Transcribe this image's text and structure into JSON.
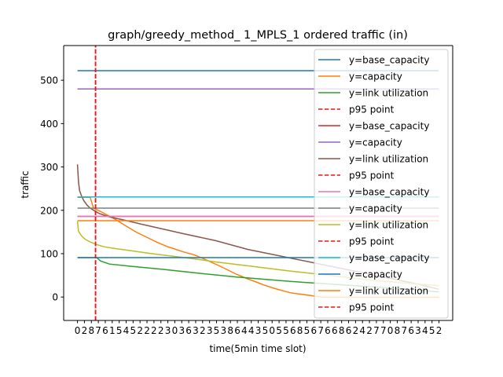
{
  "chart_data": {
    "type": "line",
    "title": "graph/greedy_method_ 1_MPLS_1 ordered traffic (in)",
    "xlabel": "time(5min time slot)",
    "ylabel": "traffic",
    "xlim": [
      -13,
      353
    ],
    "ylim": [
      -54,
      580
    ],
    "grid": false,
    "legend_position": "top-right",
    "yticks": [
      0,
      100,
      200,
      300,
      400,
      500
    ],
    "xtick_labels": [
      "0",
      "2",
      "8",
      "7",
      "6",
      "1",
      "5",
      "4",
      "5",
      "2",
      "2",
      "2",
      "2",
      "3",
      "0",
      "3",
      "6",
      "3",
      "2",
      "3",
      "5",
      "3",
      "8",
      "6",
      "4",
      "4",
      "3",
      "5",
      "0",
      "5",
      "5",
      "6",
      "8",
      "5",
      "6",
      "7",
      "6",
      "6",
      "8",
      "6",
      "2",
      "4",
      "2",
      "7",
      "7",
      "0",
      "8",
      "7",
      "6",
      "3",
      "4",
      "5",
      "2"
    ],
    "series": [
      {
        "name": "y=base_capacity",
        "color": "#1f77b4",
        "dash": false,
        "x": [
          0,
          340
        ],
        "y": [
          522,
          522
        ]
      },
      {
        "name": "y=capacity",
        "color": "#ff7f0e",
        "dash": false,
        "x": [
          0,
          12,
          15,
          22,
          35,
          45,
          55,
          65,
          75,
          85,
          90,
          100,
          110,
          120,
          135,
          150,
          160,
          170,
          175,
          185,
          200,
          230,
          260,
          300,
          340
        ],
        "y": [
          230,
          230,
          205,
          197,
          180,
          165,
          150,
          138,
          126,
          116,
          112,
          104,
          97,
          87,
          70,
          52,
          42,
          33,
          28,
          20,
          10,
          0,
          0,
          0,
          0
        ]
      },
      {
        "name": "y=link utilization",
        "color": "#2ca02c",
        "dash": false,
        "x": [
          0,
          18,
          22,
          30,
          50,
          80,
          110,
          150,
          200,
          250,
          300,
          340
        ],
        "y": [
          91,
          91,
          83,
          76,
          71,
          64,
          56,
          46,
          36,
          28,
          20,
          12
        ]
      },
      {
        "name": "p95 point",
        "color": "#e41a1c",
        "dash": true,
        "x": [
          17,
          17
        ],
        "y": [
          -54,
          580
        ]
      },
      {
        "name": "y=base_capacity",
        "color": "#d62728",
        "dash": false,
        "x": [
          0,
          340
        ],
        "y": [
          186,
          186
        ]
      },
      {
        "name": "y=capacity",
        "color": "#9467bd",
        "dash": false,
        "x": [
          0,
          340
        ],
        "y": [
          480,
          480
        ]
      },
      {
        "name": "y=link utilization",
        "color": "#8c564b",
        "dash": false,
        "x": [
          0,
          1,
          2,
          4,
          6,
          9,
          12,
          16,
          20,
          30,
          45,
          60,
          80,
          100,
          130,
          160,
          200,
          240,
          280,
          320,
          340
        ],
        "y": [
          306,
          265,
          245,
          232,
          222,
          212,
          205,
          199,
          193,
          185,
          177,
          168,
          157,
          146,
          130,
          110,
          90,
          70,
          50,
          30,
          18
        ]
      },
      {
        "name": "p95 point",
        "color": "#e41a1c",
        "dash": true,
        "x": [
          17,
          17
        ],
        "y": [
          -54,
          580
        ]
      },
      {
        "name": "y=base_capacity",
        "color": "#e377c2",
        "dash": false,
        "x": [
          0,
          340
        ],
        "y": [
          186,
          186
        ]
      },
      {
        "name": "y=capacity",
        "color": "#7f7f7f",
        "dash": false,
        "x": [
          0,
          340
        ],
        "y": [
          205,
          205
        ]
      },
      {
        "name": "y=link utilization",
        "color": "#bcbd22",
        "dash": false,
        "x": [
          0,
          1,
          3,
          5,
          8,
          12,
          18,
          25,
          35,
          50,
          70,
          90,
          110,
          130,
          160,
          200,
          240,
          280,
          320,
          340
        ],
        "y": [
          175,
          152,
          144,
          138,
          132,
          127,
          121,
          116,
          112,
          107,
          100,
          94,
          88,
          81,
          72,
          60,
          49,
          38,
          30,
          26
        ]
      },
      {
        "name": "p95 point",
        "color": "#e41a1c",
        "dash": true,
        "x": [
          17,
          17
        ],
        "y": [
          -54,
          580
        ]
      },
      {
        "name": "y=base_capacity",
        "color": "#17becf",
        "dash": false,
        "x": [
          0,
          340
        ],
        "y": [
          231,
          231
        ]
      },
      {
        "name": "y=capacity",
        "color": "#1f77b4",
        "dash": false,
        "x": [
          0,
          340
        ],
        "y": [
          91,
          91
        ]
      },
      {
        "name": "y=link utilization",
        "color": "#ff7f0e",
        "dash": false,
        "x": [
          0,
          12,
          340
        ],
        "y": [
          176,
          176,
          176
        ]
      },
      {
        "name": "p95 point",
        "color": "#e41a1c",
        "dash": true,
        "x": [
          17,
          17
        ],
        "y": [
          -54,
          580
        ]
      }
    ]
  }
}
